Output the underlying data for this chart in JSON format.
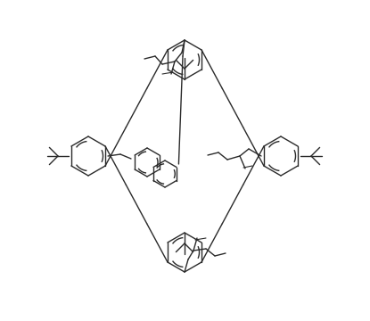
{
  "bg_color": "#ffffff",
  "line_color": "#2a2a2a",
  "line_width": 1.0,
  "fig_width": 4.15,
  "fig_height": 3.6,
  "dpi": 100
}
